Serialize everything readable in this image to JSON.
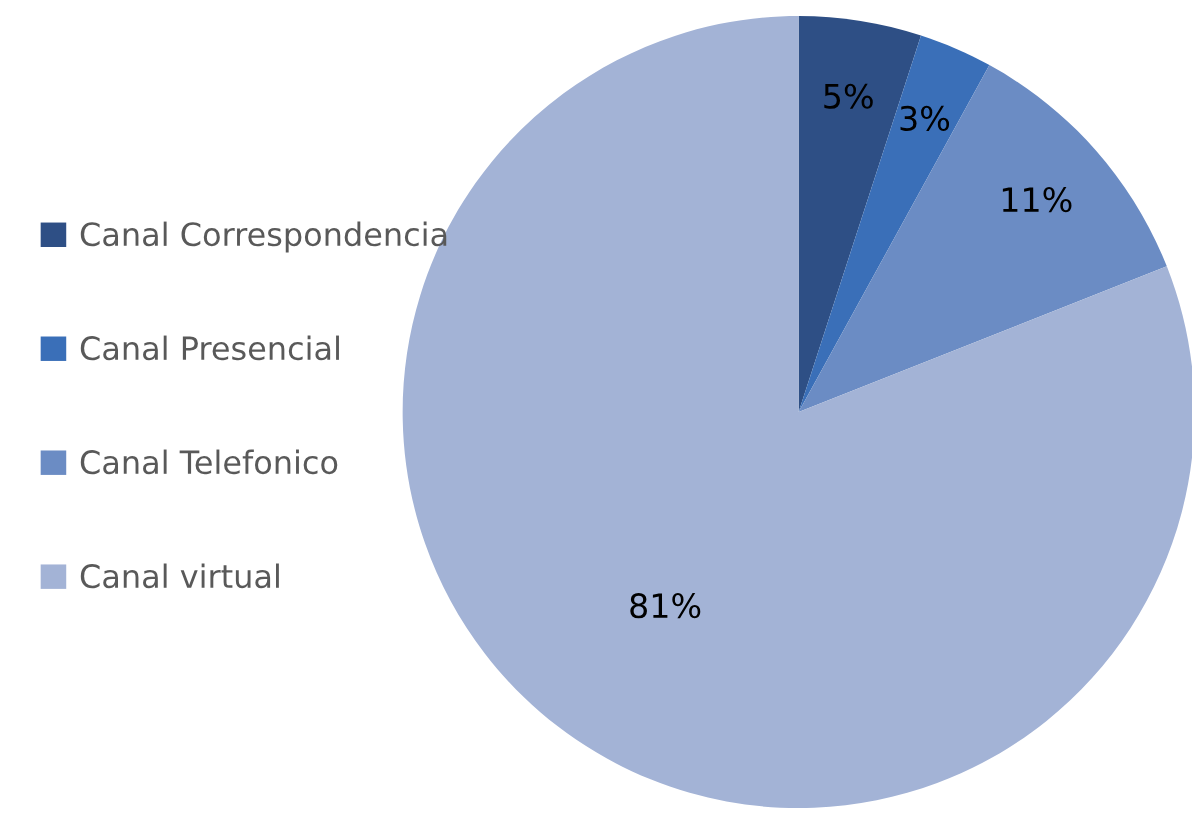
{
  "chart_data": {
    "type": "pie",
    "categories": [
      "Canal Correspondencia",
      "Canal Presencial",
      "Canal Telefonico",
      "Canal virtual"
    ],
    "values": [
      5,
      3,
      11,
      81
    ],
    "colors": [
      "#2e4f85",
      "#3a6fb8",
      "#6b8cc4",
      "#a3b3d6"
    ],
    "value_labels": [
      "5%",
      "3%",
      "11%",
      "81%"
    ],
    "legend": "left"
  }
}
